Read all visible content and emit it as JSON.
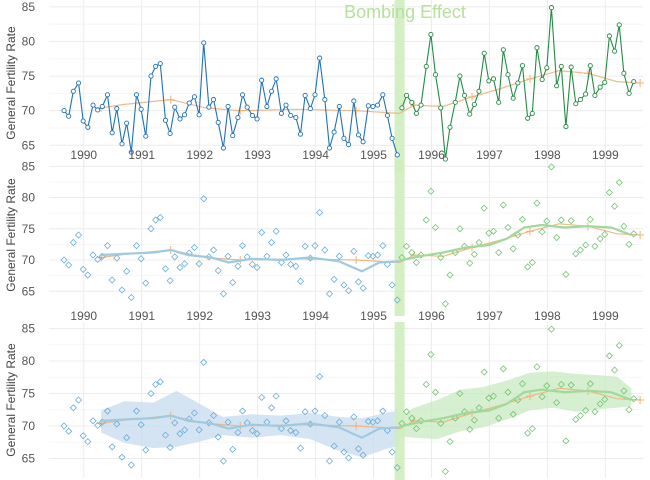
{
  "chart_data": [
    {
      "type": "line",
      "panel": 1,
      "ylabel": "General Fertility Rate",
      "ylim": [
        62,
        86
      ],
      "yticks": [
        65,
        70,
        75,
        80,
        85
      ],
      "xlim": [
        1989.7,
        1999.95
      ],
      "xtick_labels": [
        "1990",
        "1991",
        "1992",
        "1993",
        "1994",
        "1995",
        "1996",
        "1997",
        "1998",
        "1999"
      ],
      "annotation": "Bombing Effect",
      "intervention_x": 1995.75,
      "series": [
        {
          "color": "#2171b5",
          "points": [
            [
              1989.96,
              70.0
            ],
            [
              1990.04,
              69.2
            ],
            [
              1990.12,
              72.8
            ],
            [
              1990.21,
              74.0
            ],
            [
              1990.29,
              68.5
            ],
            [
              1990.37,
              67.6
            ],
            [
              1990.46,
              70.8
            ],
            [
              1990.54,
              70.1
            ],
            [
              1990.62,
              70.6
            ],
            [
              1990.71,
              72.3
            ],
            [
              1990.79,
              66.8
            ],
            [
              1990.87,
              70.3
            ],
            [
              1990.96,
              65.2
            ],
            [
              1991.04,
              68.2
            ],
            [
              1991.12,
              64.0
            ],
            [
              1991.21,
              72.3
            ],
            [
              1991.29,
              70.2
            ],
            [
              1991.37,
              66.3
            ],
            [
              1991.46,
              75.0
            ],
            [
              1991.54,
              76.4
            ],
            [
              1991.62,
              76.8
            ],
            [
              1991.71,
              68.6
            ],
            [
              1991.79,
              66.7
            ],
            [
              1991.87,
              70.5
            ],
            [
              1991.96,
              68.8
            ],
            [
              1992.04,
              69.4
            ],
            [
              1992.12,
              71.1
            ],
            [
              1992.21,
              72.0
            ],
            [
              1992.29,
              69.4
            ],
            [
              1992.37,
              79.8
            ],
            [
              1992.46,
              70.5
            ],
            [
              1992.54,
              71.6
            ],
            [
              1992.62,
              68.3
            ],
            [
              1992.71,
              64.6
            ],
            [
              1992.79,
              70.6
            ],
            [
              1992.87,
              66.4
            ],
            [
              1992.96,
              69.0
            ],
            [
              1993.04,
              72.3
            ],
            [
              1993.12,
              70.5
            ],
            [
              1993.21,
              69.3
            ],
            [
              1993.29,
              68.8
            ],
            [
              1993.37,
              74.4
            ],
            [
              1993.46,
              70.6
            ],
            [
              1993.54,
              72.8
            ],
            [
              1993.62,
              74.6
            ],
            [
              1993.71,
              69.6
            ],
            [
              1993.79,
              70.8
            ],
            [
              1993.87,
              69.3
            ],
            [
              1993.96,
              69.0
            ],
            [
              1994.04,
              66.6
            ],
            [
              1994.12,
              72.2
            ],
            [
              1994.21,
              70.3
            ],
            [
              1994.29,
              72.3
            ],
            [
              1994.37,
              77.6
            ],
            [
              1994.46,
              71.6
            ],
            [
              1994.54,
              64.6
            ],
            [
              1994.62,
              66.9
            ],
            [
              1994.71,
              70.6
            ],
            [
              1994.79,
              66.0
            ],
            [
              1994.87,
              65.1
            ],
            [
              1994.96,
              71.4
            ],
            [
              1995.04,
              66.5
            ],
            [
              1995.12,
              65.5
            ],
            [
              1995.21,
              70.7
            ],
            [
              1995.29,
              70.6
            ],
            [
              1995.37,
              70.8
            ],
            [
              1995.46,
              72.3
            ],
            [
              1995.54,
              69.3
            ],
            [
              1995.62,
              66.0
            ],
            [
              1995.71,
              63.6
            ]
          ]
        },
        {
          "color": "#238b45",
          "points": [
            [
              1995.79,
              70.4
            ],
            [
              1995.87,
              72.2
            ],
            [
              1995.96,
              71.2
            ],
            [
              1996.04,
              69.6
            ],
            [
              1996.12,
              70.8
            ],
            [
              1996.21,
              76.4
            ],
            [
              1996.29,
              81.0
            ],
            [
              1996.37,
              75.2
            ],
            [
              1996.46,
              70.4
            ],
            [
              1996.54,
              63.0
            ],
            [
              1996.62,
              67.6
            ],
            [
              1996.71,
              71.2
            ],
            [
              1996.79,
              75.0
            ],
            [
              1996.87,
              72.2
            ],
            [
              1996.96,
              69.5
            ],
            [
              1997.04,
              70.9
            ],
            [
              1997.12,
              72.8
            ],
            [
              1997.21,
              78.3
            ],
            [
              1997.29,
              74.3
            ],
            [
              1997.37,
              74.6
            ],
            [
              1997.46,
              71.2
            ],
            [
              1997.54,
              78.8
            ],
            [
              1997.62,
              75.2
            ],
            [
              1997.71,
              71.8
            ],
            [
              1997.79,
              74.0
            ],
            [
              1997.87,
              76.5
            ],
            [
              1997.96,
              68.9
            ],
            [
              1998.04,
              69.6
            ],
            [
              1998.12,
              79.1
            ],
            [
              1998.21,
              74.5
            ],
            [
              1998.29,
              76.2
            ],
            [
              1998.37,
              84.9
            ],
            [
              1998.46,
              73.6
            ],
            [
              1998.54,
              76.4
            ],
            [
              1998.62,
              67.7
            ],
            [
              1998.71,
              76.3
            ],
            [
              1998.79,
              71.0
            ],
            [
              1998.87,
              71.6
            ],
            [
              1998.96,
              72.4
            ],
            [
              1999.04,
              76.5
            ],
            [
              1999.12,
              72.2
            ],
            [
              1999.21,
              73.4
            ],
            [
              1999.29,
              74.1
            ],
            [
              1999.37,
              80.8
            ],
            [
              1999.46,
              78.6
            ],
            [
              1999.54,
              82.4
            ],
            [
              1999.62,
              75.4
            ],
            [
              1999.71,
              72.5
            ],
            [
              1999.79,
              74.2
            ]
          ]
        }
      ],
      "trend": {
        "color": "#f0b27a",
        "points": [
          [
            1990.6,
            70.4
          ],
          [
            1991.0,
            70.9
          ],
          [
            1991.8,
            71.6
          ],
          [
            1992.4,
            70.4
          ],
          [
            1993.0,
            70.0
          ],
          [
            1994.0,
            70.2
          ],
          [
            1995.0,
            70.0
          ],
          [
            1995.75,
            69.6
          ],
          [
            1996.0,
            70.8
          ],
          [
            1996.5,
            70.6
          ],
          [
            1997.0,
            72.0
          ],
          [
            1997.5,
            73.2
          ],
          [
            1998.0,
            74.6
          ],
          [
            1998.5,
            75.8
          ],
          [
            1999.0,
            75.4
          ],
          [
            1999.5,
            74.2
          ],
          [
            1999.9,
            74.0
          ]
        ]
      }
    },
    {
      "type": "scatter",
      "panel": 2,
      "ylabel": "General Fertility Rate",
      "ylim": [
        62,
        86
      ],
      "yticks": [
        65,
        70,
        75,
        80,
        85
      ],
      "xtick_labels": [
        "1990",
        "1991",
        "1992",
        "1993",
        "1994",
        "1995",
        "1996",
        "1997",
        "1998",
        "1999"
      ],
      "smooth": {
        "pre_color": "#9ecae1",
        "post_color": "#a1d99b",
        "pre": [
          [
            1990.6,
            70.8
          ],
          [
            1991.0,
            71.0
          ],
          [
            1991.5,
            71.2
          ],
          [
            1991.8,
            71.6
          ],
          [
            1992.1,
            70.8
          ],
          [
            1992.5,
            70.4
          ],
          [
            1992.8,
            69.6
          ],
          [
            1993.2,
            70.2
          ],
          [
            1993.7,
            70.0
          ],
          [
            1994.2,
            70.4
          ],
          [
            1994.7,
            69.8
          ],
          [
            1995.1,
            68.2
          ],
          [
            1995.4,
            69.6
          ],
          [
            1995.75,
            69.8
          ]
        ],
        "post": [
          [
            1995.75,
            69.9
          ],
          [
            1996.1,
            70.6
          ],
          [
            1996.5,
            71.2
          ],
          [
            1996.9,
            72.0
          ],
          [
            1997.3,
            72.4
          ],
          [
            1997.6,
            73.4
          ],
          [
            1997.9,
            75.2
          ],
          [
            1998.2,
            75.6
          ],
          [
            1998.6,
            75.2
          ],
          [
            1999.0,
            75.4
          ],
          [
            1999.4,
            75.2
          ],
          [
            1999.75,
            74.0
          ]
        ]
      },
      "trend": {
        "color": "#f0b27a",
        "points": [
          [
            1990.6,
            70.4
          ],
          [
            1991.0,
            70.9
          ],
          [
            1991.8,
            71.6
          ],
          [
            1992.4,
            70.4
          ],
          [
            1993.0,
            70.0
          ],
          [
            1994.0,
            70.2
          ],
          [
            1995.0,
            70.0
          ],
          [
            1995.75,
            69.6
          ],
          [
            1996.0,
            70.8
          ],
          [
            1996.5,
            70.6
          ],
          [
            1997.0,
            72.0
          ],
          [
            1997.5,
            73.2
          ],
          [
            1998.0,
            74.6
          ],
          [
            1998.5,
            75.8
          ],
          [
            1999.0,
            75.4
          ],
          [
            1999.5,
            74.2
          ],
          [
            1999.9,
            74.0
          ]
        ]
      }
    },
    {
      "type": "area",
      "panel": 3,
      "ylabel": "General Fertility Rate",
      "ylim": [
        62,
        86
      ],
      "yticks": [
        65,
        70,
        75,
        80,
        85
      ],
      "bands": {
        "pre_color": "#c6dbef",
        "post_color": "#c7e9c0",
        "pre": [
          [
            1990.6,
            69.0,
            72.4
          ],
          [
            1991.0,
            67.4,
            73.8
          ],
          [
            1991.5,
            66.6,
            73.6
          ],
          [
            1991.9,
            66.8,
            75.4
          ],
          [
            1992.3,
            67.6,
            73.4
          ],
          [
            1992.7,
            68.6,
            71.4
          ],
          [
            1993.2,
            68.2,
            71.8
          ],
          [
            1993.7,
            68.6,
            71.6
          ],
          [
            1994.2,
            68.0,
            72.0
          ],
          [
            1994.7,
            66.2,
            71.4
          ],
          [
            1995.1,
            65.2,
            71.2
          ],
          [
            1995.5,
            66.4,
            72.0
          ],
          [
            1995.75,
            67.0,
            72.4
          ]
        ],
        "post": [
          [
            1995.75,
            68.4,
            71.2
          ],
          [
            1996.0,
            68.2,
            72.8
          ],
          [
            1996.4,
            68.0,
            74.0
          ],
          [
            1996.8,
            69.2,
            75.6
          ],
          [
            1997.2,
            69.8,
            76.0
          ],
          [
            1997.6,
            71.0,
            77.0
          ],
          [
            1998.0,
            72.4,
            78.2
          ],
          [
            1998.4,
            72.8,
            78.4
          ],
          [
            1998.8,
            72.2,
            78.0
          ],
          [
            1999.2,
            72.6,
            77.8
          ],
          [
            1999.5,
            72.8,
            77.6
          ],
          [
            1999.75,
            73.0,
            75.8
          ]
        ]
      },
      "smooth": {
        "pre_color": "#9ecae1",
        "post_color": "#a1d99b",
        "pre": [
          [
            1990.6,
            70.8
          ],
          [
            1991.0,
            71.0
          ],
          [
            1991.5,
            71.2
          ],
          [
            1991.8,
            71.6
          ],
          [
            1992.1,
            70.8
          ],
          [
            1992.5,
            70.4
          ],
          [
            1992.8,
            69.6
          ],
          [
            1993.2,
            70.2
          ],
          [
            1993.7,
            70.0
          ],
          [
            1994.2,
            70.4
          ],
          [
            1994.7,
            69.8
          ],
          [
            1995.1,
            68.2
          ],
          [
            1995.4,
            69.6
          ],
          [
            1995.75,
            69.8
          ]
        ],
        "post": [
          [
            1995.75,
            69.9
          ],
          [
            1996.1,
            70.6
          ],
          [
            1996.5,
            71.2
          ],
          [
            1996.9,
            72.0
          ],
          [
            1997.3,
            72.4
          ],
          [
            1997.6,
            73.4
          ],
          [
            1997.9,
            75.2
          ],
          [
            1998.2,
            75.6
          ],
          [
            1998.6,
            75.2
          ],
          [
            1999.0,
            75.4
          ],
          [
            1999.4,
            75.2
          ],
          [
            1999.75,
            74.0
          ]
        ]
      },
      "trend": {
        "color": "#f0b27a",
        "points": [
          [
            1990.6,
            70.4
          ],
          [
            1991.0,
            70.9
          ],
          [
            1991.8,
            71.6
          ],
          [
            1992.4,
            70.4
          ],
          [
            1993.0,
            70.0
          ],
          [
            1994.0,
            70.2
          ],
          [
            1995.0,
            70.0
          ],
          [
            1995.75,
            69.6
          ],
          [
            1996.0,
            70.8
          ],
          [
            1996.5,
            70.6
          ],
          [
            1997.0,
            72.0
          ],
          [
            1997.5,
            73.2
          ],
          [
            1998.0,
            74.6
          ],
          [
            1998.5,
            75.8
          ],
          [
            1999.0,
            75.4
          ],
          [
            1999.5,
            74.2
          ],
          [
            1999.9,
            74.0
          ]
        ]
      }
    }
  ]
}
